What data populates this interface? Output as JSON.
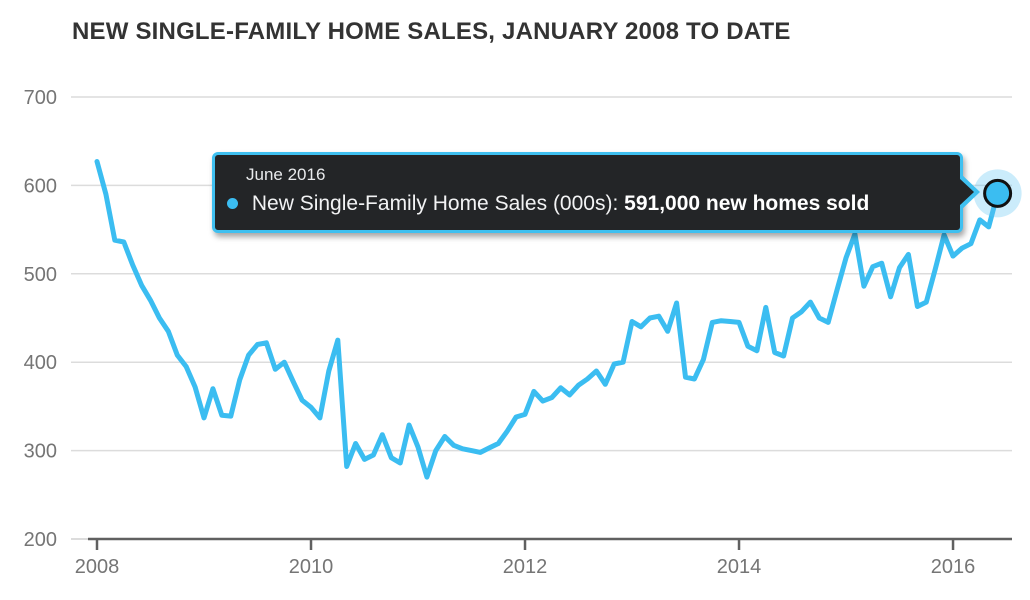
{
  "header": {
    "title": "NEW SINGLE-FAMILY HOME SALES, JANUARY 2008 TO DATE"
  },
  "tooltip": {
    "date": "June 2016",
    "series_label": "New Single-Family Home Sales (000s):",
    "value_bold": "591,000 new homes sold",
    "bg_color": "#232527",
    "border_color": "#3fc0f0"
  },
  "colors": {
    "line": "#3bbdf1",
    "halo": "rgba(96,198,242,0.33)",
    "point_stroke": "#111111",
    "grid": "#dcdcdc",
    "axis": "#606060",
    "tick_label": "#757575",
    "title": "#333333"
  },
  "chart_data": {
    "type": "line",
    "title": "NEW SINGLE-FAMILY HOME SALES, JANUARY 2008 TO DATE",
    "xlabel": "",
    "ylabel": "",
    "x_unit": "month",
    "x_start": "January 2008",
    "x_end": "June 2016",
    "x_tick_labels": [
      "2008",
      "2010",
      "2012",
      "2014",
      "2016"
    ],
    "y_tick_labels": [
      "700",
      "600",
      "500",
      "400",
      "300",
      "200"
    ],
    "ylim": [
      200,
      700
    ],
    "grid": true,
    "legend": false,
    "series": [
      {
        "name": "New Single-Family Home Sales (000s)",
        "color": "#3bbdf1",
        "values": [
          627,
          590,
          538,
          536,
          510,
          487,
          470,
          450,
          435,
          408,
          395,
          372,
          337,
          370,
          340,
          339,
          380,
          408,
          420,
          422,
          392,
          400,
          378,
          357,
          349,
          337,
          390,
          425,
          282,
          308,
          290,
          295,
          318,
          292,
          286,
          329,
          304,
          270,
          300,
          316,
          306,
          302,
          300,
          298,
          303,
          308,
          322,
          338,
          341,
          367,
          356,
          360,
          371,
          363,
          374,
          381,
          390,
          375,
          398,
          400,
          446,
          440,
          450,
          452,
          435,
          467,
          383,
          381,
          403,
          445,
          447,
          446,
          445,
          418,
          413,
          462,
          411,
          407,
          450,
          457,
          468,
          450,
          445,
          482,
          518,
          545,
          486,
          508,
          512,
          474,
          507,
          522,
          463,
          468,
          505,
          544,
          520,
          529,
          534,
          561,
          553,
          591
        ]
      }
    ],
    "highlight_point": {
      "label": "June 2016",
      "value": 591
    }
  }
}
